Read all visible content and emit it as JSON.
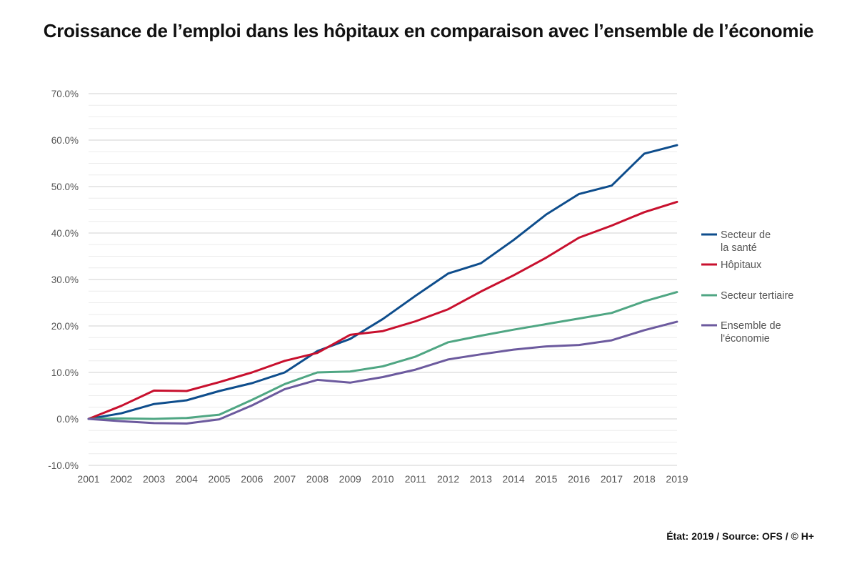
{
  "title": "Croissance de l’emploi dans les hôpitaux en comparaison avec l’ensemble de l’économie",
  "source": "État: 2019 / Source: OFS / © H+",
  "chart_data": {
    "type": "line",
    "title": "Croissance de l’emploi dans les hôpitaux en comparaison avec l’ensemble de l’économie",
    "xlabel": "",
    "ylabel": "",
    "x": [
      "2001",
      "2002",
      "2003",
      "2004",
      "2005",
      "2006",
      "2007",
      "2008",
      "2009",
      "2010",
      "2011",
      "2012",
      "2013",
      "2014",
      "2015",
      "2016",
      "2017",
      "2018",
      "2019"
    ],
    "ylim": [
      -10,
      70
    ],
    "yticks": [
      "-10.0%",
      "0.0%",
      "10.0%",
      "20.0%",
      "30.0%",
      "40.0%",
      "50.0%",
      "60.0%",
      "70.0%"
    ],
    "grid": true,
    "legend_position": "right",
    "series": [
      {
        "name": "Secteur de la santé",
        "color": "#0e4d8c",
        "values": [
          0.0,
          1.2,
          3.2,
          4.0,
          6.0,
          7.7,
          10.0,
          14.6,
          17.2,
          21.5,
          26.5,
          31.3,
          33.5,
          38.5,
          44.0,
          48.4,
          50.2,
          57.1,
          58.9
        ]
      },
      {
        "name": "Hôpitaux",
        "color": "#c8102e",
        "values": [
          0.0,
          2.8,
          6.1,
          6.0,
          7.9,
          10.0,
          12.5,
          14.2,
          18.1,
          18.9,
          21.0,
          23.6,
          27.4,
          30.9,
          34.7,
          39.0,
          41.6,
          44.5,
          46.7
        ]
      },
      {
        "name": "Secteur tertiaire",
        "color": "#4fa683",
        "values": [
          0.0,
          0.1,
          0.0,
          0.2,
          0.9,
          4.1,
          7.5,
          10.0,
          10.2,
          11.3,
          13.4,
          16.5,
          17.9,
          19.2,
          20.4,
          21.6,
          22.8,
          25.3,
          27.3
        ]
      },
      {
        "name": "Ensemble de l'économie",
        "color": "#6c5a9e",
        "values": [
          0.0,
          -0.5,
          -0.9,
          -1.0,
          -0.1,
          2.9,
          6.4,
          8.4,
          7.8,
          9.0,
          10.6,
          12.8,
          13.9,
          14.9,
          15.6,
          15.9,
          16.9,
          19.1,
          20.9
        ]
      }
    ]
  }
}
